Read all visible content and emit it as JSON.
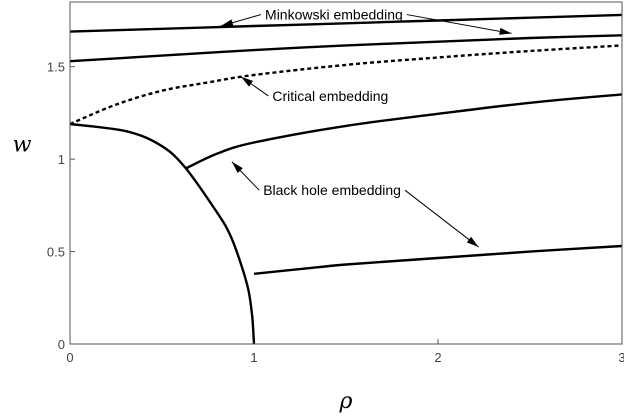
{
  "chart_data": {
    "type": "line",
    "title": "",
    "xlabel": "ρ",
    "ylabel": "w",
    "xlim": [
      0,
      3
    ],
    "ylim": [
      0,
      1.85
    ],
    "x_ticks": [
      0,
      1,
      2,
      3
    ],
    "y_ticks": [
      0,
      0.5,
      1,
      1.5
    ],
    "x_tick_labels": [
      "0",
      "1",
      "2",
      "3"
    ],
    "y_tick_labels": [
      "0",
      "0.5",
      "1",
      "1.5"
    ],
    "grid": false,
    "legend": "none",
    "series": [
      {
        "style": "solid",
        "points": [
          [
            0,
            1.69
          ],
          [
            0.5,
            1.705
          ],
          [
            1,
            1.72
          ],
          [
            1.5,
            1.735
          ],
          [
            2,
            1.75
          ],
          [
            2.5,
            1.765
          ],
          [
            3,
            1.78
          ]
        ]
      },
      {
        "style": "solid",
        "points": [
          [
            0,
            1.53
          ],
          [
            0.25,
            1.545
          ],
          [
            0.5,
            1.56
          ],
          [
            1,
            1.59
          ],
          [
            1.5,
            1.615
          ],
          [
            2,
            1.635
          ],
          [
            2.5,
            1.655
          ],
          [
            3,
            1.67
          ]
        ]
      },
      {
        "style": "dotted",
        "points": [
          [
            0,
            1.19
          ],
          [
            0.25,
            1.295
          ],
          [
            0.5,
            1.37
          ],
          [
            0.75,
            1.415
          ],
          [
            1,
            1.455
          ],
          [
            1.5,
            1.51
          ],
          [
            2,
            1.55
          ],
          [
            2.5,
            1.585
          ],
          [
            3,
            1.615
          ]
        ]
      },
      {
        "style": "solid",
        "points": [
          [
            0.63,
            0.95
          ],
          [
            0.8,
            1.03
          ],
          [
            1,
            1.09
          ],
          [
            1.5,
            1.18
          ],
          [
            2,
            1.245
          ],
          [
            2.5,
            1.305
          ],
          [
            3,
            1.35
          ]
        ]
      },
      {
        "style": "solid",
        "points": [
          [
            1,
            0.38
          ],
          [
            1.25,
            0.405
          ],
          [
            1.5,
            0.43
          ],
          [
            2,
            0.465
          ],
          [
            2.5,
            0.5
          ],
          [
            3,
            0.53
          ]
        ]
      },
      {
        "style": "solid",
        "points": [
          [
            0,
            1.19
          ],
          [
            0.31,
            1.15
          ],
          [
            0.5,
            1.07
          ],
          [
            0.63,
            0.95
          ],
          [
            0.8,
            0.71
          ],
          [
            0.87,
            0.59
          ],
          [
            0.93,
            0.43
          ],
          [
            0.97,
            0.29
          ],
          [
            0.99,
            0.15
          ],
          [
            1,
            0
          ]
        ]
      }
    ],
    "annotations": [
      {
        "text": "Minkowski embedding",
        "anchor": [
          1.06,
          1.755
        ],
        "arrows": [
          [
            0.82,
            1.72
          ],
          [
            2.4,
            1.68
          ]
        ]
      },
      {
        "text": "Critical embedding",
        "anchor": [
          1.1,
          1.315
        ],
        "arrows": [
          [
            0.93,
            1.445
          ]
        ]
      },
      {
        "text": "Black hole embedding",
        "anchor": [
          1.05,
          0.805
        ],
        "arrows": [
          [
            0.88,
            0.985
          ],
          [
            2.22,
            0.525
          ]
        ]
      }
    ]
  }
}
